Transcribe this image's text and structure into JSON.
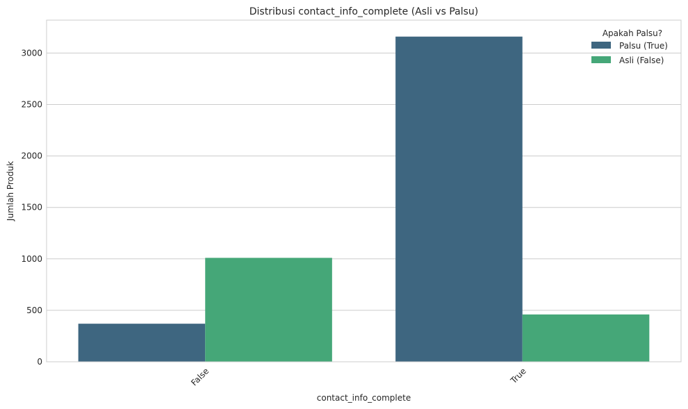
{
  "chart_data": {
    "type": "bar",
    "title": "Distribusi contact_info_complete (Asli vs Palsu)",
    "xlabel": "contact_info_complete",
    "ylabel": "Jumlah Produk",
    "categories": [
      "False",
      "True"
    ],
    "series": [
      {
        "name": "Palsu (True)",
        "values": [
          370,
          3160
        ],
        "color": "#3e6680"
      },
      {
        "name": "Asli (False)",
        "values": [
          1010,
          460
        ],
        "color": "#45a778"
      }
    ],
    "yticks": [
      0,
      500,
      1000,
      1500,
      2000,
      2500,
      3000
    ],
    "ylim": [
      0,
      3320
    ],
    "grid": true,
    "legend_title": "Apakah Palsu?",
    "legend_position": "top-right"
  }
}
